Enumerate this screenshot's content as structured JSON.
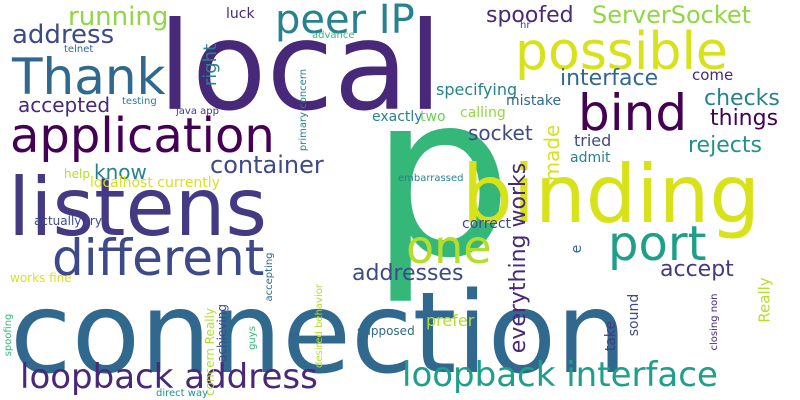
{
  "words": [
    {
      "text": "connection",
      "color": "#31688e"
    },
    {
      "text": "p",
      "color": "#35b779"
    },
    {
      "text": "local",
      "color": "#482878"
    },
    {
      "text": "listens",
      "color": "#443983"
    },
    {
      "text": "binding",
      "color": "#d8e219"
    },
    {
      "text": "application",
      "color": "#440154"
    },
    {
      "text": "different",
      "color": "#3e4989"
    },
    {
      "text": "possible",
      "color": "#d8e219"
    },
    {
      "text": "Thank",
      "color": "#31688e"
    },
    {
      "text": "bind",
      "color": "#440154"
    },
    {
      "text": "port",
      "color": "#1f9e89"
    },
    {
      "text": "one",
      "color": "#b5de2b"
    },
    {
      "text": "peer IP",
      "color": "#26828e"
    },
    {
      "text": "loopback interface",
      "color": "#1f9e89"
    },
    {
      "text": "loopback address",
      "color": "#482878"
    },
    {
      "text": "container",
      "color": "#3e4989"
    },
    {
      "text": "running",
      "color": "#90d743"
    },
    {
      "text": "address",
      "color": "#3e4989"
    },
    {
      "text": "ServerSocket",
      "color": "#90d743"
    },
    {
      "text": "spoofed",
      "color": "#482878"
    },
    {
      "text": "interface",
      "color": "#31688e"
    },
    {
      "text": "checks",
      "color": "#26828e"
    },
    {
      "text": "things",
      "color": "#440154"
    },
    {
      "text": "rejects",
      "color": "#21918c"
    },
    {
      "text": "addresses",
      "color": "#3e4989"
    },
    {
      "text": "accept",
      "color": "#443983"
    },
    {
      "text": "accepted",
      "color": "#482878"
    },
    {
      "text": "socket",
      "color": "#3e4989"
    },
    {
      "text": "know",
      "color": "#26828e"
    },
    {
      "text": "tried",
      "color": "#3e4989"
    },
    {
      "text": "come",
      "color": "#482878"
    },
    {
      "text": "prefer",
      "color": "#b5de2b"
    },
    {
      "text": "specifying",
      "color": "#26828e"
    },
    {
      "text": "mistake",
      "color": "#31688e"
    },
    {
      "text": "calling",
      "color": "#90d743"
    },
    {
      "text": "exactly",
      "color": "#26828e"
    },
    {
      "text": "two",
      "color": "#6ece58"
    },
    {
      "text": "admit",
      "color": "#26828e"
    },
    {
      "text": "correct",
      "color": "#3e4989"
    },
    {
      "text": "luck",
      "color": "#482878"
    },
    {
      "text": "hr",
      "color": "#3e4989"
    },
    {
      "text": "telnet",
      "color": "#31688e"
    },
    {
      "text": "advance",
      "color": "#35b779"
    },
    {
      "text": "testing",
      "color": "#26828e"
    },
    {
      "text": "java app",
      "color": "#443983"
    },
    {
      "text": "embarrassed",
      "color": "#26828e"
    },
    {
      "text": "help",
      "color": "#b5de2b"
    },
    {
      "text": "localhost currently",
      "color": "#d8e219"
    },
    {
      "text": "actually try",
      "color": "#3e4989"
    },
    {
      "text": "works fine",
      "color": "#d8e219"
    },
    {
      "text": "supposed",
      "color": "#31688e"
    },
    {
      "text": "direct way",
      "color": "#21918c"
    },
    {
      "text": "everything works",
      "color": "#482878"
    },
    {
      "text": "made",
      "color": "#d8e219"
    },
    {
      "text": "right",
      "color": "#26828e"
    },
    {
      "text": "e",
      "color": "#31688e"
    },
    {
      "text": "sound",
      "color": "#3e4989"
    },
    {
      "text": "take",
      "color": "#443983"
    },
    {
      "text": "Really",
      "color": "#b5de2b"
    },
    {
      "text": "primary concern",
      "color": "#26828e"
    },
    {
      "text": "accepting",
      "color": "#31688e"
    },
    {
      "text": "spoofing",
      "color": "#35b779"
    },
    {
      "text": "concern Really",
      "color": "#b5de2b"
    },
    {
      "text": "achieving",
      "color": "#3e4989"
    },
    {
      "text": "guys",
      "color": "#35b779"
    },
    {
      "text": "desired behavior",
      "color": "#b5de2b"
    },
    {
      "text": "closing non",
      "color": "#482878"
    }
  ]
}
